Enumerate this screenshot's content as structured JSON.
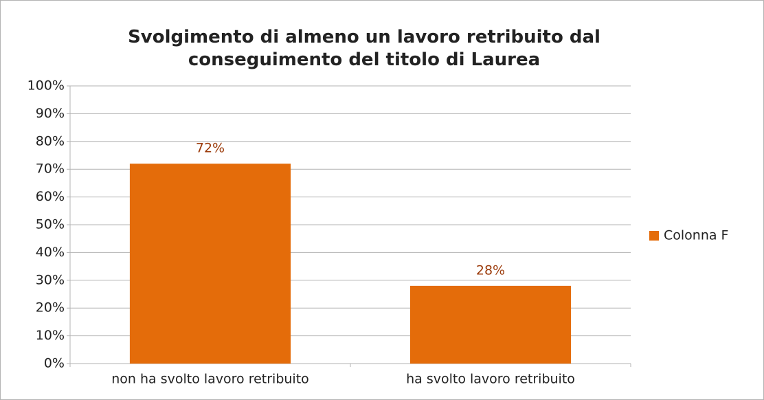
{
  "chart_data": {
    "type": "bar",
    "title": "Svolgimento di almeno un lavoro retribuito dal conseguimento del titolo di Laurea",
    "categories": [
      "non ha svolto lavoro retribuito",
      "ha svolto lavoro retribuito"
    ],
    "series": [
      {
        "name": "Colonna F",
        "color": "#e46c0a",
        "values": [
          72,
          28
        ],
        "value_labels": [
          "72%",
          "28%"
        ]
      }
    ],
    "ylim": [
      0,
      100
    ],
    "yticks": [
      {
        "value": 0,
        "label": "0%"
      },
      {
        "value": 10,
        "label": "10%"
      },
      {
        "value": 20,
        "label": "20%"
      },
      {
        "value": 30,
        "label": "30%"
      },
      {
        "value": 40,
        "label": "40%"
      },
      {
        "value": 50,
        "label": "50%"
      },
      {
        "value": 60,
        "label": "60%"
      },
      {
        "value": 70,
        "label": "70%"
      },
      {
        "value": 80,
        "label": "80%"
      },
      {
        "value": 90,
        "label": "90%"
      },
      {
        "value": 100,
        "label": "100%"
      }
    ],
    "grid": true,
    "legend": "right"
  }
}
